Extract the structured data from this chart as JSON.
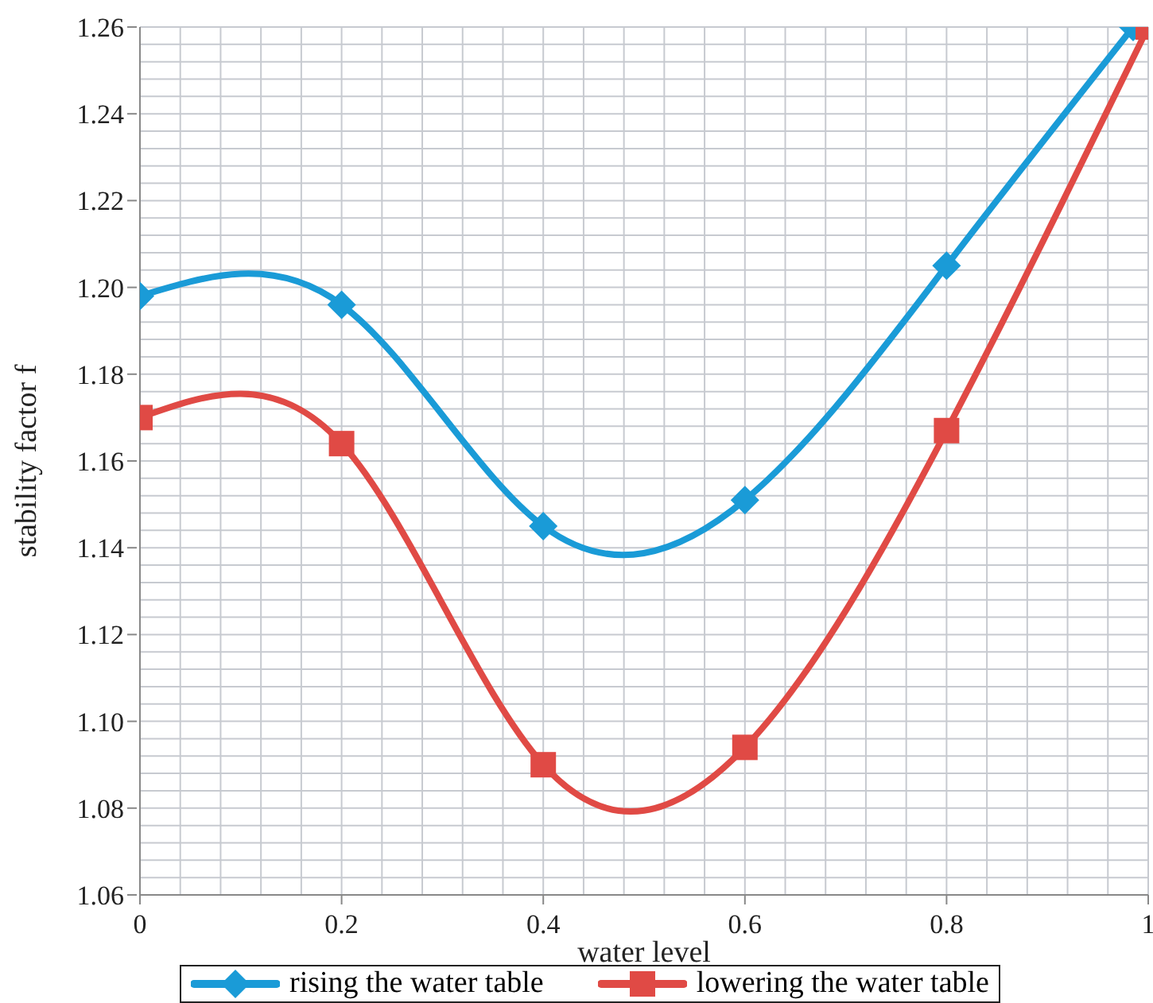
{
  "chart_data": {
    "type": "line",
    "xlabel": "water level",
    "ylabel": "stability factor f",
    "x": [
      0,
      0.2,
      0.4,
      0.6,
      0.8,
      1
    ],
    "series": [
      {
        "name": "rising the water table",
        "color": "#1a9bd7",
        "marker": "diamond",
        "x": [
          0,
          0.2,
          0.4,
          0.6,
          0.8,
          0.985
        ],
        "values": [
          1.198,
          1.196,
          1.145,
          1.151,
          1.205,
          1.26
        ]
      },
      {
        "name": "lowering the water table",
        "color": "#e04a45",
        "marker": "square",
        "values": [
          1.17,
          1.164,
          1.09,
          1.094,
          1.167,
          1.26
        ]
      }
    ],
    "xlim": [
      0,
      1
    ],
    "xticks": [
      0,
      {
        "value": 0.04,
        "label": null
      },
      {
        "value": 0.08,
        "label": null
      },
      {
        "value": 0.12,
        "label": null
      },
      {
        "value": 0.16,
        "label": null
      },
      0.2,
      {
        "value": 0.24,
        "label": null
      },
      {
        "value": 0.28,
        "label": null
      },
      {
        "value": 0.32,
        "label": null
      },
      {
        "value": 0.36,
        "label": null
      },
      0.4,
      {
        "value": 0.44,
        "label": null
      },
      {
        "value": 0.48,
        "label": null
      },
      {
        "value": 0.52,
        "label": null
      },
      {
        "value": 0.56,
        "label": null
      },
      0.6,
      {
        "value": 0.64,
        "label": null
      },
      {
        "value": 0.68,
        "label": null
      },
      {
        "value": 0.72,
        "label": null
      },
      {
        "value": 0.76,
        "label": null
      },
      0.8,
      {
        "value": 0.84,
        "label": null
      },
      {
        "value": 0.88,
        "label": null
      },
      {
        "value": 0.92,
        "label": null
      },
      {
        "value": 0.96,
        "label": null
      },
      1
    ],
    "ylim": [
      1.06,
      1.26
    ],
    "yticks": [
      1.06,
      {
        "value": 1.064,
        "label": null
      },
      {
        "value": 1.068,
        "label": null
      },
      {
        "value": 1.072,
        "label": null
      },
      {
        "value": 1.076,
        "label": null
      },
      {
        "value": 1.08,
        "label": "1.08"
      },
      {
        "value": 1.084,
        "label": null
      },
      {
        "value": 1.088,
        "label": null
      },
      {
        "value": 1.092,
        "label": null
      },
      {
        "value": 1.096,
        "label": null
      },
      {
        "value": 1.1,
        "label": "1.10"
      },
      {
        "value": 1.104,
        "label": null
      },
      {
        "value": 1.108,
        "label": null
      },
      {
        "value": 1.112,
        "label": null
      },
      {
        "value": 1.116,
        "label": null
      },
      1.12,
      {
        "value": 1.124,
        "label": null
      },
      {
        "value": 1.128,
        "label": null
      },
      {
        "value": 1.132,
        "label": null
      },
      {
        "value": 1.136,
        "label": null
      },
      {
        "value": 1.14,
        "label": "1.14"
      },
      {
        "value": 1.144,
        "label": null
      },
      {
        "value": 1.148,
        "label": null
      },
      {
        "value": 1.152,
        "label": null
      },
      {
        "value": 1.156,
        "label": null
      },
      {
        "value": 1.16,
        "label": "1.16"
      },
      {
        "value": 1.164,
        "label": null
      },
      {
        "value": 1.168,
        "label": null
      },
      {
        "value": 1.172,
        "label": null
      },
      {
        "value": 1.176,
        "label": null
      },
      1.18,
      {
        "value": 1.184,
        "label": null
      },
      {
        "value": 1.188,
        "label": null
      },
      {
        "value": 1.192,
        "label": null
      },
      {
        "value": 1.196,
        "label": null
      },
      {
        "value": 1.2,
        "label": "1.20"
      },
      {
        "value": 1.204,
        "label": null
      },
      {
        "value": 1.208,
        "label": null
      },
      {
        "value": 1.212,
        "label": null
      },
      {
        "value": 1.216,
        "label": null
      },
      1.22,
      {
        "value": 1.224,
        "label": null
      },
      {
        "value": 1.228,
        "label": null
      },
      {
        "value": 1.232,
        "label": null
      },
      {
        "value": 1.236,
        "label": null
      },
      1.24,
      {
        "value": 1.244,
        "label": null
      },
      {
        "value": 1.248,
        "label": null
      },
      {
        "value": 1.252,
        "label": null
      },
      {
        "value": 1.256,
        "label": null
      },
      1.26
    ],
    "grid": true,
    "legend": "bottom"
  }
}
